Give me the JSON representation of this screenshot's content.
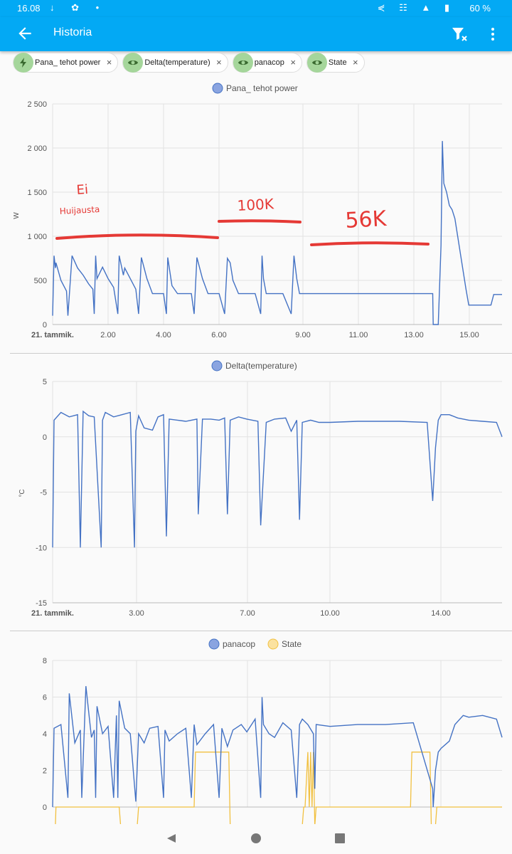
{
  "status_bar": {
    "time": "16.08",
    "battery": "60 %"
  },
  "app_bar": {
    "title": "Historia"
  },
  "chips": [
    {
      "label": "Pana_ tehot power",
      "icon": "lightning-icon"
    },
    {
      "label": "Delta(temperature)",
      "icon": "eye-icon"
    },
    {
      "label": "panacop",
      "icon": "eye-icon"
    },
    {
      "label": "State",
      "icon": "eye-icon"
    }
  ],
  "colors": {
    "accent": "#03a9f4",
    "series_blue": "#4472c4",
    "series_yellow": "#f1c040",
    "annotation_red": "#e53935",
    "chip_icon_bg": "#a5d69b"
  },
  "annotations": {
    "ei": "Ei",
    "huijausta": "Huijausta",
    "k100": "100K",
    "k56": "56K"
  },
  "chart_data": [
    {
      "type": "line",
      "legend": "Pana_ tehot power",
      "ylabel": "W",
      "ylim": [
        0,
        2500
      ],
      "yticks": [
        "2 500",
        "2 000",
        "1 500",
        "1 000",
        "500",
        "0"
      ],
      "xlim_hours": [
        0,
        16.2
      ],
      "xticks": [
        "21. tammik.",
        "2.00",
        "4.00",
        "6.00",
        "9.00",
        "11.00",
        "13.00",
        "15.00"
      ],
      "series": [
        {
          "name": "Pana_ tehot power",
          "x": [
            0,
            0.05,
            0.1,
            0.12,
            0.3,
            0.5,
            0.55,
            0.7,
            0.9,
            1.1,
            1.3,
            1.45,
            1.5,
            1.55,
            1.6,
            1.8,
            2.0,
            2.2,
            2.35,
            2.4,
            2.55,
            2.6,
            3.0,
            3.1,
            3.2,
            3.4,
            3.6,
            3.8,
            4.0,
            4.1,
            4.15,
            4.3,
            4.5,
            4.7,
            5.0,
            5.1,
            5.2,
            5.4,
            5.6,
            5.8,
            6.0,
            6.2,
            6.3,
            6.4,
            6.5,
            6.7,
            7.0,
            7.3,
            7.5,
            7.55,
            7.6,
            7.7,
            8.0,
            8.3,
            8.6,
            8.7,
            8.8,
            8.9,
            9.2,
            9.4,
            9.8,
            10.5,
            12.0,
            13.0,
            13.7,
            13.72,
            13.9,
            14.0,
            14.05,
            14.1,
            14.2,
            14.3,
            14.4,
            14.5,
            14.6,
            14.7,
            14.8,
            14.9,
            15.0,
            15.5,
            15.8,
            15.9,
            16.2
          ],
          "y": [
            100,
            780,
            640,
            700,
            500,
            380,
            100,
            780,
            640,
            560,
            460,
            400,
            120,
            780,
            520,
            650,
            520,
            420,
            120,
            780,
            560,
            640,
            400,
            120,
            760,
            520,
            350,
            350,
            350,
            120,
            760,
            440,
            350,
            350,
            350,
            120,
            760,
            520,
            350,
            350,
            350,
            120,
            750,
            700,
            500,
            350,
            350,
            350,
            120,
            780,
            520,
            350,
            350,
            350,
            120,
            780,
            520,
            350,
            350,
            350,
            350,
            350,
            350,
            350,
            350,
            0,
            0,
            900,
            2080,
            1600,
            1500,
            1350,
            1300,
            1200,
            1000,
            800,
            600,
            400,
            220,
            220,
            220,
            340,
            340
          ]
        }
      ]
    },
    {
      "type": "line",
      "legend": "Delta(temperature)",
      "ylabel": "°C",
      "ylim": [
        -15,
        5
      ],
      "yticks": [
        "5",
        "0",
        "-5",
        "-10",
        "-15"
      ],
      "xlim_hours": [
        0,
        16.2
      ],
      "xticks": [
        "21. tammik.",
        "3.00",
        "7.00",
        "10.00",
        "14.00"
      ],
      "series": [
        {
          "name": "Delta(temperature)",
          "x": [
            0,
            0.05,
            0.3,
            0.6,
            0.9,
            1.0,
            1.1,
            1.3,
            1.5,
            1.75,
            1.8,
            1.9,
            2.2,
            2.5,
            2.8,
            2.95,
            3.0,
            3.1,
            3.3,
            3.6,
            3.8,
            4.0,
            4.1,
            4.2,
            4.5,
            4.8,
            5.2,
            5.25,
            5.4,
            5.7,
            6.0,
            6.2,
            6.3,
            6.4,
            6.7,
            7.0,
            7.4,
            7.5,
            7.7,
            8.0,
            8.4,
            8.6,
            8.8,
            8.9,
            9.0,
            9.3,
            9.6,
            10.0,
            11.0,
            12.5,
            13.5,
            13.7,
            13.8,
            13.9,
            14.0,
            14.3,
            14.6,
            15.0,
            15.5,
            16.0,
            16.2
          ],
          "y": [
            -10,
            1.5,
            2.2,
            1.8,
            2.0,
            -10,
            2.3,
            1.9,
            1.8,
            -10,
            1.5,
            2.2,
            1.8,
            2.0,
            2.2,
            -10,
            0.5,
            1.9,
            0.8,
            0.6,
            1.8,
            2.0,
            -9,
            1.6,
            1.5,
            1.4,
            1.6,
            -7,
            1.6,
            1.6,
            1.5,
            1.7,
            -7,
            1.5,
            1.8,
            1.6,
            1.4,
            -8,
            1.3,
            1.6,
            1.7,
            0.5,
            1.5,
            -7.5,
            1.3,
            1.5,
            1.3,
            1.3,
            1.4,
            1.4,
            1.3,
            -5.8,
            -1,
            1.5,
            2.0,
            2.0,
            1.7,
            1.5,
            1.4,
            1.3,
            0
          ]
        }
      ]
    },
    {
      "type": "line",
      "legend": [
        "panacop",
        "State"
      ],
      "ylim": [
        0,
        8
      ],
      "yticks": [
        "8",
        "6",
        "4",
        "2",
        "0"
      ],
      "xlim_hours": [
        0,
        16.2
      ],
      "series": [
        {
          "name": "panacop",
          "x": [
            0,
            0.05,
            0.3,
            0.55,
            0.6,
            0.8,
            1.0,
            1.05,
            1.2,
            1.4,
            1.5,
            1.55,
            1.6,
            1.8,
            2.0,
            2.2,
            2.3,
            2.35,
            2.4,
            2.6,
            2.8,
            3.0,
            3.1,
            3.3,
            3.5,
            3.8,
            4.0,
            4.05,
            4.2,
            4.5,
            4.8,
            5.0,
            5.1,
            5.2,
            5.5,
            5.8,
            6.0,
            6.1,
            6.3,
            6.5,
            6.8,
            7.0,
            7.3,
            7.5,
            7.55,
            7.6,
            7.8,
            8.0,
            8.3,
            8.6,
            8.8,
            8.9,
            9.0,
            9.2,
            9.4,
            9.45,
            9.5,
            10.0,
            11.0,
            12.0,
            13.0,
            13.7,
            13.72,
            13.8,
            13.9,
            14.0,
            14.3,
            14.5,
            14.8,
            15.0,
            15.5,
            16.0,
            16.2
          ],
          "y": [
            0,
            4.3,
            4.5,
            0.5,
            6.2,
            3.5,
            4.2,
            0.5,
            6.6,
            3.8,
            4.2,
            0.5,
            5.5,
            4.0,
            4.4,
            0.5,
            5.0,
            0.5,
            5.8,
            4.3,
            4.0,
            0.3,
            4.0,
            3.5,
            4.3,
            4.4,
            0.5,
            4.2,
            3.6,
            4.0,
            4.3,
            0.5,
            4.5,
            3.4,
            4.0,
            4.5,
            0.5,
            4.3,
            3.3,
            4.2,
            4.5,
            4.1,
            4.8,
            0.5,
            6.0,
            4.5,
            4.0,
            3.8,
            4.6,
            4.2,
            0.5,
            4.5,
            4.8,
            4.5,
            4.0,
            1.0,
            4.5,
            4.4,
            4.5,
            4.5,
            4.6,
            1.0,
            0,
            2.0,
            3.0,
            3.2,
            3.6,
            4.5,
            5.0,
            4.9,
            5.0,
            4.8,
            3.8
          ]
        },
        {
          "name": "State",
          "x": [
            0,
            0.1,
            0.12,
            2.4,
            2.45,
            3.05,
            3.1,
            5.1,
            5.15,
            5.8,
            5.85,
            6.35,
            6.4,
            9.0,
            9.05,
            9.1,
            9.2,
            9.25,
            9.3,
            9.35,
            9.4,
            9.45,
            9.5,
            9.55,
            12.9,
            12.95,
            13.6,
            13.65,
            13.8,
            13.85,
            14.2,
            14.25,
            16.2
          ],
          "y": [
            -1,
            -1,
            0,
            0,
            -1,
            -1,
            0,
            0,
            3,
            3,
            3,
            3,
            -1,
            -1,
            0,
            0,
            3,
            0,
            3,
            0,
            3,
            -1,
            0,
            0,
            0,
            3,
            3,
            -1,
            -1,
            0,
            0,
            0,
            0
          ]
        }
      ]
    }
  ]
}
